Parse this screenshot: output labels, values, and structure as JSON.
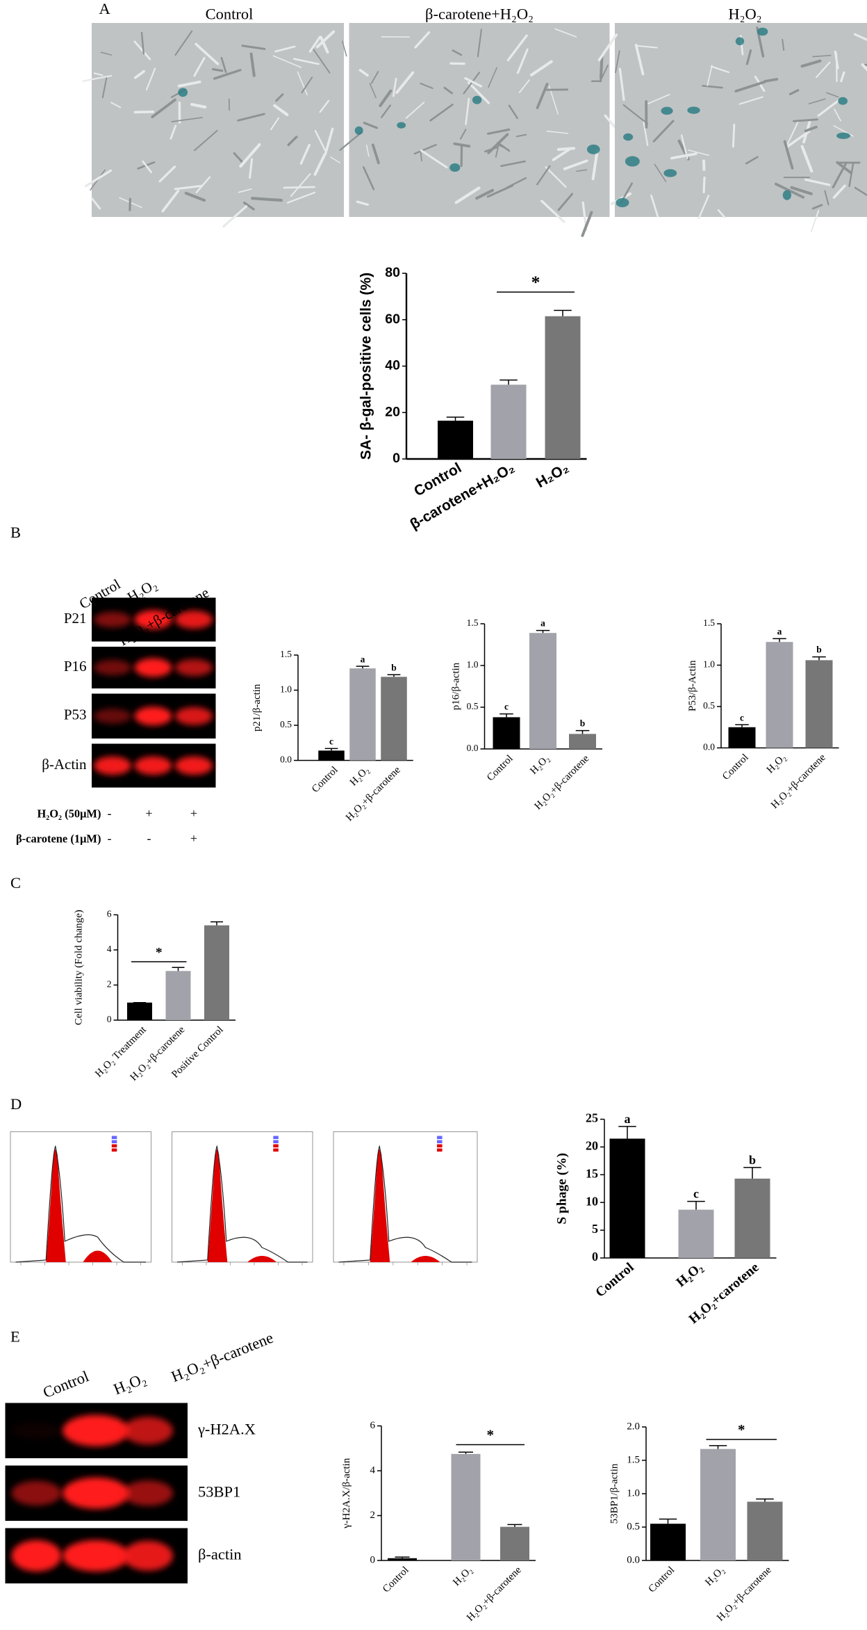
{
  "panel_labels": [
    "A",
    "B",
    "C",
    "D",
    "E"
  ],
  "micrographs": {
    "labels": [
      "Control",
      "β-carotene+H₂O₂",
      "H₂O₂"
    ]
  },
  "western_b": {
    "lanes": [
      "Control",
      "H₂O₂",
      "H₂O₂+β-carotene"
    ],
    "rows": [
      "P21",
      "P16",
      "P53",
      "β-Actin"
    ],
    "treatments": [
      {
        "name": "H₂O₂ (50μM)",
        "signs": [
          "-",
          "+",
          "+"
        ]
      },
      {
        "name": "β-carotene (1μM)",
        "signs": [
          "-",
          "-",
          "+"
        ]
      }
    ]
  },
  "western_e": {
    "lanes": [
      "Control",
      "H₂O₂",
      "H₂O₂+β-carotene"
    ],
    "rows": [
      "γ-H2A.X",
      "53BP1",
      "β-actin"
    ]
  },
  "chart_data": [
    {
      "type": "bar",
      "ylabel": "SA- β-gal-positive cells (%)",
      "categories": [
        "Control",
        "β-carotene+H₂O₂",
        "H₂O₂"
      ],
      "values": [
        16.5,
        32,
        61.5
      ],
      "errors": [
        1.5,
        2,
        2.5
      ],
      "colors": [
        "#000000",
        "#a2a2aa",
        "#777777"
      ],
      "ylim": [
        0,
        80
      ],
      "yticks": [
        0,
        20,
        40,
        60,
        80
      ],
      "annotation": "*"
    },
    {
      "type": "bar",
      "ylabel": "p21/β-actin",
      "categories": [
        "Control",
        "H₂O₂",
        "H₂O₂+β-carotene"
      ],
      "values": [
        0.14,
        1.31,
        1.19
      ],
      "errors": [
        0.03,
        0.03,
        0.03
      ],
      "colors": [
        "#000000",
        "#a2a2aa",
        "#777777"
      ],
      "ylim": [
        0,
        1.5
      ],
      "yticks": [
        {
          "value": 0,
          "label": "0.0"
        },
        0.5,
        {
          "value": 1,
          "label": "1.0"
        },
        1.5
      ],
      "letters": [
        "c",
        "a",
        "b"
      ]
    },
    {
      "type": "bar",
      "ylabel": "p16/β-actin",
      "categories": [
        "Control",
        "H₂O₂",
        "H₂O₂+β-carotene"
      ],
      "values": [
        0.38,
        1.39,
        0.18
      ],
      "errors": [
        0.04,
        0.03,
        0.04
      ],
      "colors": [
        "#000000",
        "#a2a2aa",
        "#777777"
      ],
      "ylim": [
        0,
        1.5
      ],
      "yticks": [
        {
          "value": 0,
          "label": "0.0"
        },
        0.5,
        {
          "value": 1,
          "label": "1.0"
        },
        1.5
      ],
      "letters": [
        "c",
        "a",
        "b"
      ]
    },
    {
      "type": "bar",
      "ylabel": "P53/β-Actin",
      "categories": [
        "Control",
        "H₂O₂",
        "H₂O₂+β-carotene"
      ],
      "values": [
        0.25,
        1.28,
        1.06
      ],
      "errors": [
        0.03,
        0.04,
        0.04
      ],
      "colors": [
        "#000000",
        "#a2a2aa",
        "#777777"
      ],
      "ylim": [
        0,
        1.5
      ],
      "yticks": [
        {
          "value": 0,
          "label": "0.0"
        },
        0.5,
        {
          "value": 1,
          "label": "1.0"
        },
        1.5
      ],
      "letters": [
        "c",
        "a",
        "b"
      ]
    },
    {
      "type": "bar",
      "ylabel": "Cell viability (Fold change)",
      "categories": [
        "H₂O₂ Treatment",
        "H₂O₂+β-carotene",
        "Positive Control"
      ],
      "values": [
        1,
        2.8,
        5.4
      ],
      "errors": [
        0,
        0.2,
        0.2
      ],
      "colors": [
        "#000000",
        "#a2a2aa",
        "#777777"
      ],
      "ylim": [
        0,
        6
      ],
      "yticks": [
        0,
        2,
        4,
        6
      ],
      "annotation": "*"
    },
    {
      "type": "bar",
      "ylabel": "S phage (%)",
      "categories": [
        "Control",
        "H₂O₂",
        "H₂O₂+carotene"
      ],
      "values": [
        21.5,
        8.7,
        14.3
      ],
      "errors": [
        2.2,
        1.5,
        2
      ],
      "colors": [
        "#000000",
        "#a2a2aa",
        "#777777"
      ],
      "ylim": [
        0,
        25
      ],
      "yticks": [
        0,
        5,
        10,
        15,
        20,
        25
      ],
      "letters": [
        "a",
        "c",
        "b"
      ]
    },
    {
      "type": "bar",
      "ylabel": "γ-H2A.X/β-actin",
      "categories": [
        "Control",
        "H₂O₂",
        "H₂O₂+β-carotene"
      ],
      "values": [
        0.1,
        4.75,
        1.5
      ],
      "errors": [
        0.05,
        0.08,
        0.1
      ],
      "colors": [
        "#000000",
        "#a2a2aa",
        "#777777"
      ],
      "ylim": [
        0,
        6
      ],
      "yticks": [
        0,
        2,
        4,
        6
      ],
      "annotation": "*"
    },
    {
      "type": "bar",
      "ylabel": "53BP1/β-actin",
      "categories": [
        "Control",
        "H₂O₂",
        "H₂O₂+β-carotene"
      ],
      "values": [
        0.55,
        1.67,
        0.88
      ],
      "errors": [
        0.07,
        0.05,
        0.04
      ],
      "colors": [
        "#000000",
        "#a2a2aa",
        "#777777"
      ],
      "ylim": [
        0,
        2
      ],
      "yticks": [
        {
          "value": 0,
          "label": "0.0"
        },
        0.5,
        {
          "value": 1,
          "label": "1.0"
        },
        1.5,
        {
          "value": 2,
          "label": "2.0"
        }
      ],
      "annotation": "*"
    }
  ]
}
